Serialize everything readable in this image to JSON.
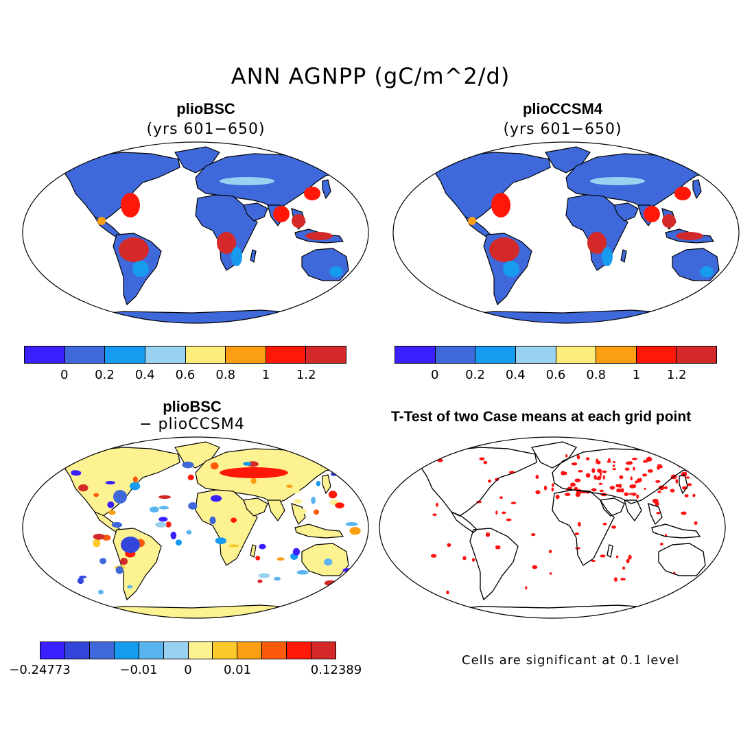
{
  "title": "ANN AGNPP (gC/m^2/d)",
  "panels": [
    {
      "name": "plioBSC",
      "subtitle": "(yrs 601−650)"
    },
    {
      "name": "plioCCSM4",
      "subtitle": "(yrs 601−650)"
    },
    {
      "name": "plioBSC",
      "subtitle": "− plioCCSM4"
    },
    {
      "name": "T-Test of two Case means at each grid point",
      "subtitle": ""
    }
  ],
  "colorbar_abs": {
    "colors": [
      "#3a1fff",
      "#3f69da",
      "#169bf0",
      "#99d2f0",
      "#fcec7a",
      "#fb9e12",
      "#ff1708",
      "#d32929"
    ],
    "labels": [
      "0",
      "0.2",
      "0.4",
      "0.6",
      "0.8",
      "1",
      "1.2"
    ]
  },
  "colorbar_diff": {
    "colors": [
      "#3a1fff",
      "#3346dc",
      "#3f69da",
      "#169bf0",
      "#5ab4f0",
      "#99d2f0",
      "#fdf291",
      "#fcc92a",
      "#fb9e12",
      "#fb5a0b",
      "#ff1708",
      "#d32929"
    ],
    "labels": [
      "−0.24773",
      "−0.01",
      "0",
      "0.01",
      "0.12389"
    ]
  },
  "note": "Cells are significant at 0.1 level",
  "map_colors": {
    "ocean": "#ffffff",
    "land_low": "#3f69da",
    "land_mid": "#169bf0",
    "land_high": "#d32929",
    "diff_base": "#fdf291",
    "signif": "#ff1010"
  }
}
